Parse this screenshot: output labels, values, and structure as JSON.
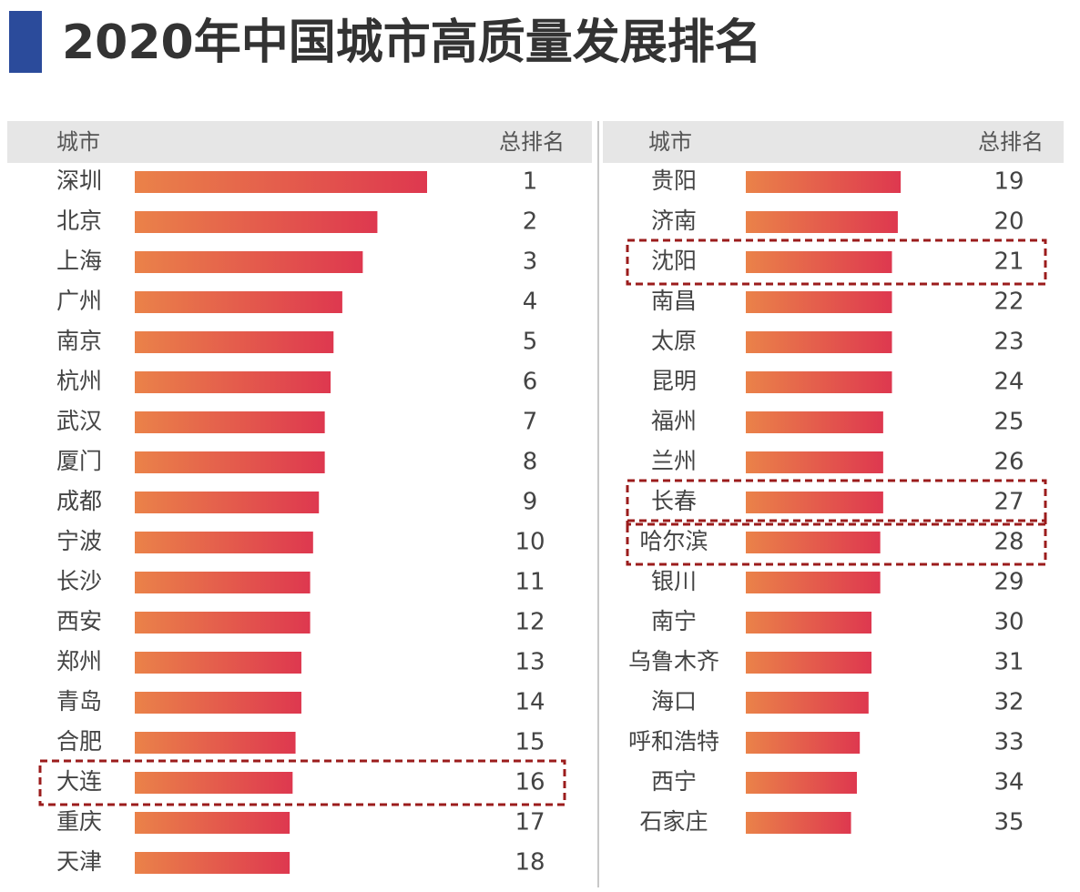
{
  "chart_data": {
    "type": "bar",
    "title": "2020年中国城市高质量发展排名",
    "panels": [
      {
        "header": {
          "city": "城市",
          "rank": "总排名"
        },
        "rows": [
          {
            "city": "深圳",
            "rank": 1,
            "value": 100
          },
          {
            "city": "北京",
            "rank": 2,
            "value": 83
          },
          {
            "city": "上海",
            "rank": 3,
            "value": 78
          },
          {
            "city": "广州",
            "rank": 4,
            "value": 71
          },
          {
            "city": "南京",
            "rank": 5,
            "value": 68
          },
          {
            "city": "杭州",
            "rank": 6,
            "value": 67
          },
          {
            "city": "武汉",
            "rank": 7,
            "value": 65
          },
          {
            "city": "厦门",
            "rank": 8,
            "value": 65
          },
          {
            "city": "成都",
            "rank": 9,
            "value": 63
          },
          {
            "city": "宁波",
            "rank": 10,
            "value": 61
          },
          {
            "city": "长沙",
            "rank": 11,
            "value": 60
          },
          {
            "city": "西安",
            "rank": 12,
            "value": 60
          },
          {
            "city": "郑州",
            "rank": 13,
            "value": 57
          },
          {
            "city": "青岛",
            "rank": 14,
            "value": 57
          },
          {
            "city": "合肥",
            "rank": 15,
            "value": 55
          },
          {
            "city": "大连",
            "rank": 16,
            "value": 54,
            "highlight": true
          },
          {
            "city": "重庆",
            "rank": 17,
            "value": 53
          },
          {
            "city": "天津",
            "rank": 18,
            "value": 53
          }
        ]
      },
      {
        "header": {
          "city": "城市",
          "rank": "总排名"
        },
        "rows": [
          {
            "city": "贵阳",
            "rank": 19,
            "value": 53
          },
          {
            "city": "济南",
            "rank": 20,
            "value": 52
          },
          {
            "city": "沈阳",
            "rank": 21,
            "value": 50,
            "highlight": true
          },
          {
            "city": "南昌",
            "rank": 22,
            "value": 50
          },
          {
            "city": "太原",
            "rank": 23,
            "value": 50
          },
          {
            "city": "昆明",
            "rank": 24,
            "value": 50
          },
          {
            "city": "福州",
            "rank": 25,
            "value": 47
          },
          {
            "city": "兰州",
            "rank": 26,
            "value": 47
          },
          {
            "city": "长春",
            "rank": 27,
            "value": 47,
            "highlight": true
          },
          {
            "city": "哈尔滨",
            "rank": 28,
            "value": 46,
            "highlight": true
          },
          {
            "city": "银川",
            "rank": 29,
            "value": 46
          },
          {
            "city": "南宁",
            "rank": 30,
            "value": 43
          },
          {
            "city": "乌鲁木齐",
            "rank": 31,
            "value": 43
          },
          {
            "city": "海口",
            "rank": 32,
            "value": 42
          },
          {
            "city": "呼和浩特",
            "rank": 33,
            "value": 39
          },
          {
            "city": "西宁",
            "rank": 34,
            "value": 38
          },
          {
            "city": "石家庄",
            "rank": 35,
            "value": 36
          }
        ]
      }
    ]
  }
}
